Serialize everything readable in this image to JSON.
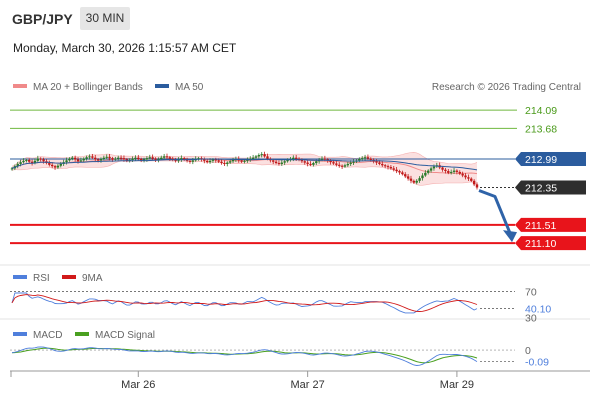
{
  "header": {
    "pair": "GBP/JPY",
    "timeframe": "30 MIN",
    "datetime": "Monday, March 30, 2026 1:15:57 AM CET"
  },
  "colors": {
    "green_level": "#6fb83f",
    "red_level": "#e8141b",
    "ma50": "#2b5c9e",
    "bollinger": "#f08a8a",
    "band_fill": "#fbe0e0",
    "candle_up": "#2a7a2a",
    "candle_down": "#c01a1a",
    "rsi": "#4f7fdc",
    "rsi_ma": "#d11a1a",
    "macd": "#4f7fdc",
    "macd_signal": "#4aa020",
    "arrow": "#2f63a8"
  },
  "chart_data": [
    {
      "type": "candlestick",
      "legend": [
        {
          "name": "MA 20 + Bollinger Bands",
          "color": "#f08a8a"
        },
        {
          "name": "MA 50",
          "color": "#2b5c9e"
        }
      ],
      "source": "Research © 2026 Trading Central",
      "ylim": [
        210.9,
        214.25
      ],
      "resistance_levels": [
        {
          "label": "214.09",
          "value": 214.09
        },
        {
          "label": "213.68",
          "value": 213.68
        }
      ],
      "support_levels": [
        {
          "label": "211.51",
          "value": 211.51
        },
        {
          "label": "211.10",
          "value": 211.1
        }
      ],
      "pivot": {
        "label": "212.99",
        "value": 212.99
      },
      "last_price": {
        "label": "212.35",
        "value": 212.35
      },
      "forecast": {
        "from": 212.35,
        "to": 211.1
      },
      "close": [
        212.78,
        212.83,
        212.88,
        212.92,
        212.95,
        212.97,
        212.93,
        212.9,
        212.95,
        213,
        212.98,
        212.94,
        212.9,
        212.86,
        212.83,
        212.8,
        212.84,
        212.88,
        212.92,
        212.96,
        213,
        213.02,
        212.98,
        212.94,
        212.96,
        213,
        213.03,
        213.05,
        213.02,
        212.98,
        212.96,
        212.99,
        213.02,
        213.04,
        213.01,
        212.98,
        213,
        213.02,
        213.01,
        212.98,
        212.95,
        212.97,
        213,
        213.02,
        212.99,
        212.96,
        212.98,
        213.01,
        213.03,
        213,
        212.97,
        212.99,
        213.02,
        213.05,
        213.03,
        213,
        212.97,
        212.95,
        212.98,
        213.01,
        212.98,
        212.95,
        212.93,
        212.96,
        212.99,
        213.01,
        212.98,
        212.95,
        212.92,
        212.95,
        212.98,
        212.96,
        212.93,
        212.9,
        212.88,
        212.91,
        212.94,
        212.97,
        212.99,
        212.96,
        212.93,
        212.95,
        212.98,
        213,
        213.02,
        213.05,
        213.08,
        213.1,
        213.05,
        213,
        212.96,
        212.93,
        212.9,
        212.88,
        212.91,
        212.94,
        212.97,
        212.99,
        213.02,
        213,
        212.97,
        212.94,
        212.91,
        212.88,
        212.86,
        212.9,
        212.94,
        212.97,
        213,
        212.98,
        212.95,
        212.92,
        212.89,
        212.86,
        212.84,
        212.82,
        212.85,
        212.88,
        212.91,
        212.93,
        212.96,
        212.99,
        213.01,
        213.03,
        213,
        212.97,
        212.94,
        212.91,
        212.88,
        212.85,
        212.83,
        212.81,
        212.78,
        212.75,
        212.72,
        212.69,
        212.65,
        212.6,
        212.55,
        212.5,
        212.46,
        212.5,
        212.56,
        212.62,
        212.68,
        212.73,
        212.78,
        212.82,
        212.85,
        212.8,
        212.75,
        212.72,
        212.68,
        212.7,
        212.73,
        212.7,
        212.66,
        212.62,
        212.58,
        212.55,
        212.5,
        212.42,
        212.35
      ],
      "x_ticks": [
        {
          "label": "Mar 26",
          "index": 44
        },
        {
          "label": "Mar 27",
          "index": 103
        },
        {
          "label": "Mar 29",
          "index": 155
        }
      ]
    },
    {
      "type": "line",
      "legend": [
        {
          "name": "RSI",
          "color": "#4f7fdc"
        },
        {
          "name": "9MA",
          "color": "#d11a1a"
        }
      ],
      "ylim": [
        27,
        78
      ],
      "level": {
        "label": "70",
        "value": 70
      },
      "last": {
        "label": "40.10",
        "value": 40.1
      },
      "low_label": "30"
    },
    {
      "type": "line",
      "legend": [
        {
          "name": "MACD",
          "color": "#4f7fdc"
        },
        {
          "name": "MACD Signal",
          "color": "#4aa020"
        }
      ],
      "ylim": [
        -0.14,
        0.04
      ],
      "zero": {
        "label": "0",
        "value": 0
      },
      "last": {
        "label": "-0.09",
        "value": -0.09
      }
    }
  ]
}
